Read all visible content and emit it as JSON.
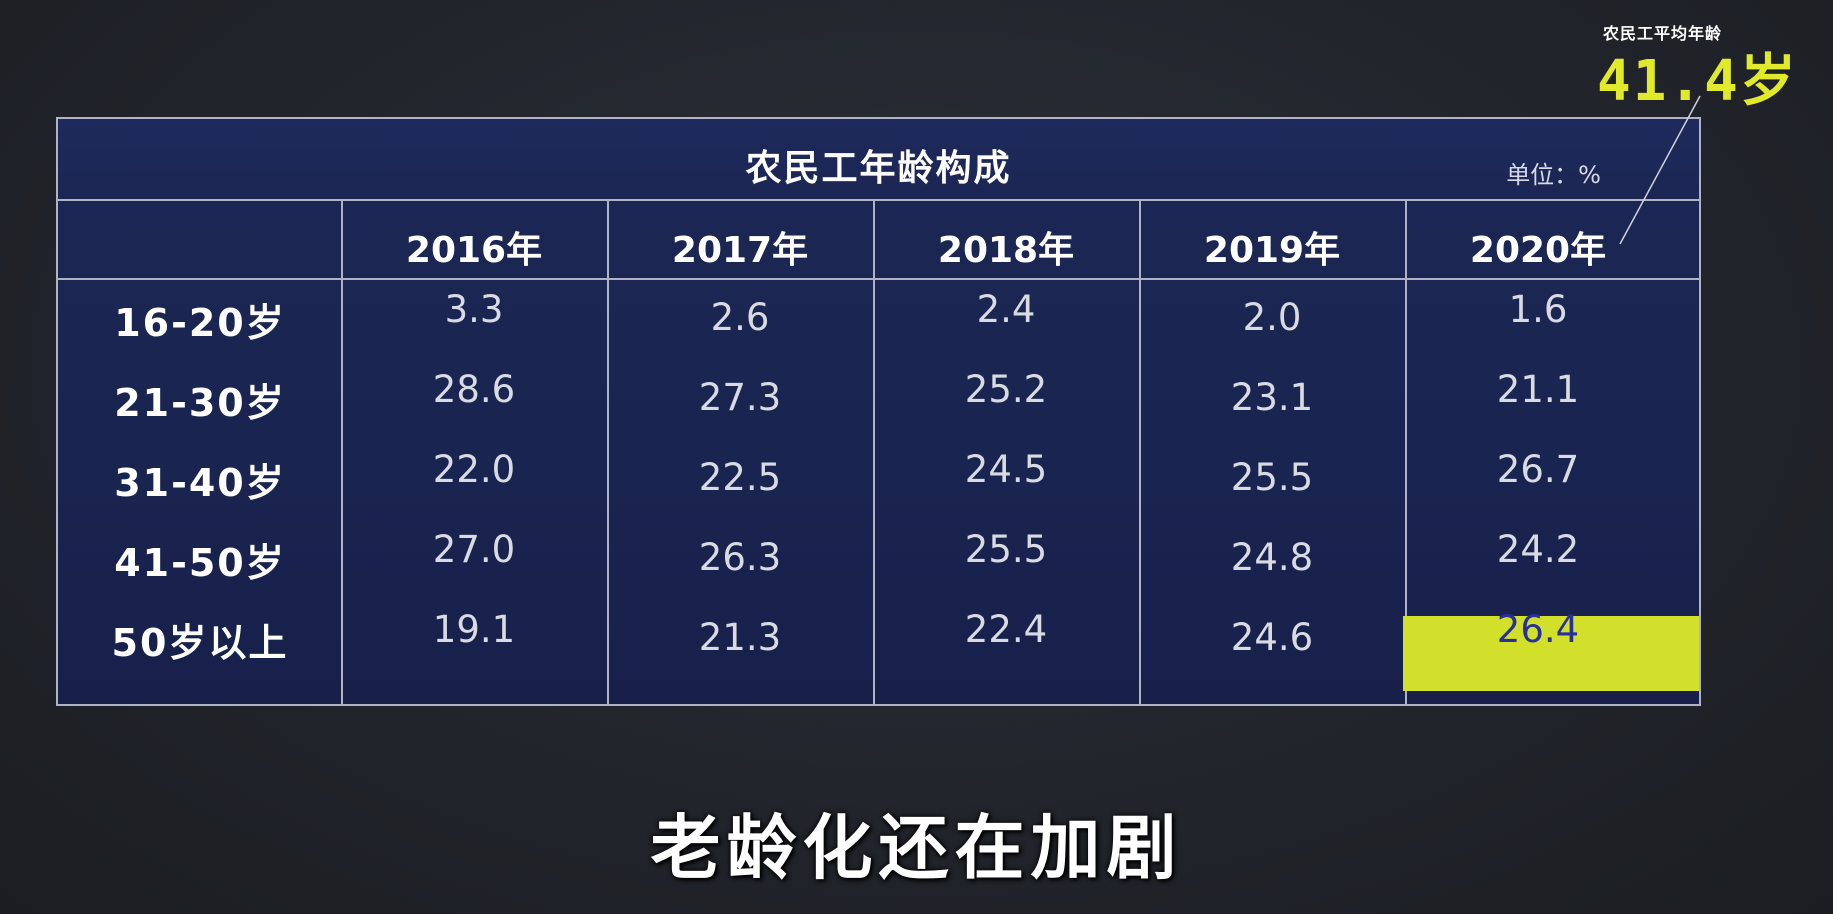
{
  "callout": {
    "label": "农民工平均年龄",
    "value": "41.4岁"
  },
  "chart_data": {
    "type": "table",
    "title": "农民工年龄构成",
    "unit": "单位：%",
    "columns": [
      "2016年",
      "2017年",
      "2018年",
      "2019年",
      "2020年"
    ],
    "rows": [
      {
        "label": "16-20岁",
        "values": [
          "3.3",
          "2.6",
          "2.4",
          "2.0",
          "1.6"
        ]
      },
      {
        "label": "21-30岁",
        "values": [
          "28.6",
          "27.3",
          "25.2",
          "23.1",
          "21.1"
        ]
      },
      {
        "label": "31-40岁",
        "values": [
          "22.0",
          "22.5",
          "24.5",
          "25.5",
          "26.7"
        ]
      },
      {
        "label": "41-50岁",
        "values": [
          "27.0",
          "26.3",
          "25.5",
          "24.8",
          "24.2"
        ]
      },
      {
        "label": "50岁以上",
        "values": [
          "19.1",
          "21.3",
          "22.4",
          "24.6",
          "26.4"
        ]
      }
    ],
    "highlight": {
      "row": 4,
      "col": 4,
      "color": "#d3e02b"
    }
  },
  "subtitle": "老龄化还在加剧"
}
